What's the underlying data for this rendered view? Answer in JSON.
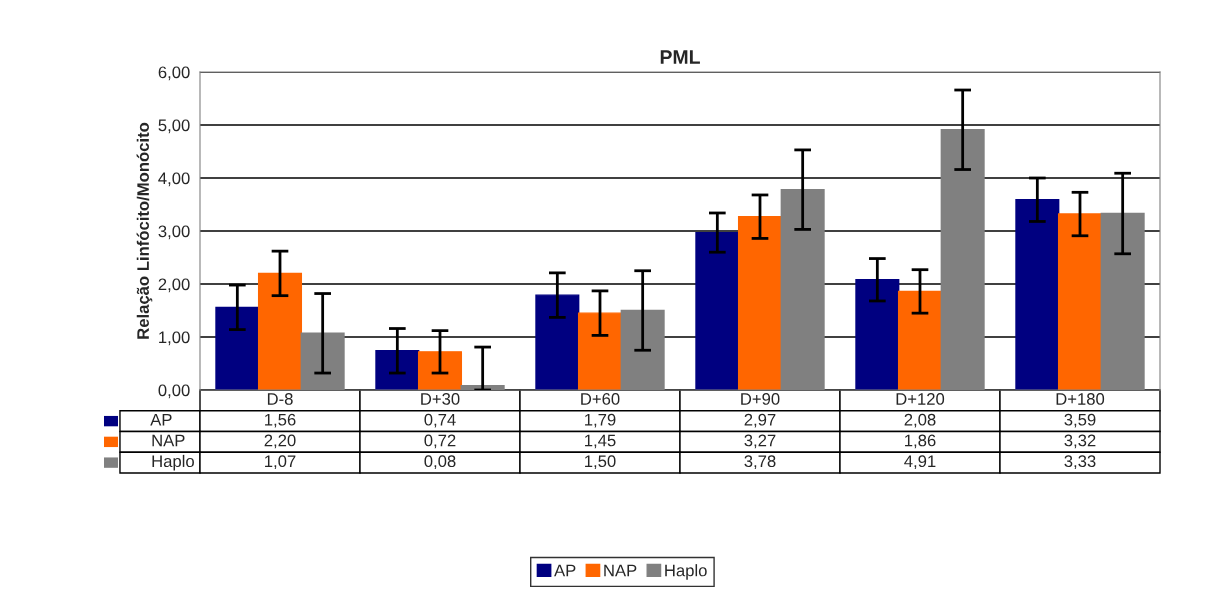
{
  "chart_data": {
    "type": "bar",
    "title": "PML",
    "ylabel": "Relação Linfócito/Monócito",
    "categories": [
      "D-8",
      "D+30",
      "D+60",
      "D+90",
      "D+120",
      "D+180"
    ],
    "series": [
      {
        "name": "AP",
        "color": "#000080",
        "values": [
          1.56,
          0.74,
          1.79,
          2.97,
          2.08,
          3.59
        ],
        "value_labels": [
          "1,56",
          "0,74",
          "1,79",
          "2,97",
          "2,08",
          "3,59"
        ],
        "errors": [
          0.42,
          0.42,
          0.42,
          0.37,
          0.4,
          0.41
        ]
      },
      {
        "name": "NAP",
        "color": "#ff6600",
        "values": [
          2.2,
          0.72,
          1.45,
          3.27,
          1.86,
          3.32
        ],
        "value_labels": [
          "2,20",
          "0,72",
          "1,45",
          "3,27",
          "1,86",
          "3,32"
        ],
        "errors": [
          0.42,
          0.4,
          0.42,
          0.41,
          0.41,
          0.41
        ]
      },
      {
        "name": "Haplo",
        "color": "#808080",
        "values": [
          1.07,
          0.08,
          1.5,
          3.78,
          4.91,
          3.33
        ],
        "value_labels": [
          "1,07",
          "0,08",
          "1,50",
          "3,78",
          "4,91",
          "3,33"
        ],
        "errors": [
          0.75,
          [
            0,
            0.81
          ],
          0.75,
          0.75,
          0.75,
          0.76
        ]
      }
    ],
    "ylim": [
      0,
      6
    ],
    "yticks": [
      {
        "value": 0,
        "label": "0,00"
      },
      {
        "value": 1,
        "label": "1,00"
      },
      {
        "value": 2,
        "label": "2,00"
      },
      {
        "value": 3,
        "label": "3,00"
      },
      {
        "value": 4,
        "label": "4,00"
      },
      {
        "value": 5,
        "label": "5,00"
      },
      {
        "value": 6,
        "label": "6,00"
      }
    ],
    "grid": "y",
    "legend": "bottom"
  }
}
